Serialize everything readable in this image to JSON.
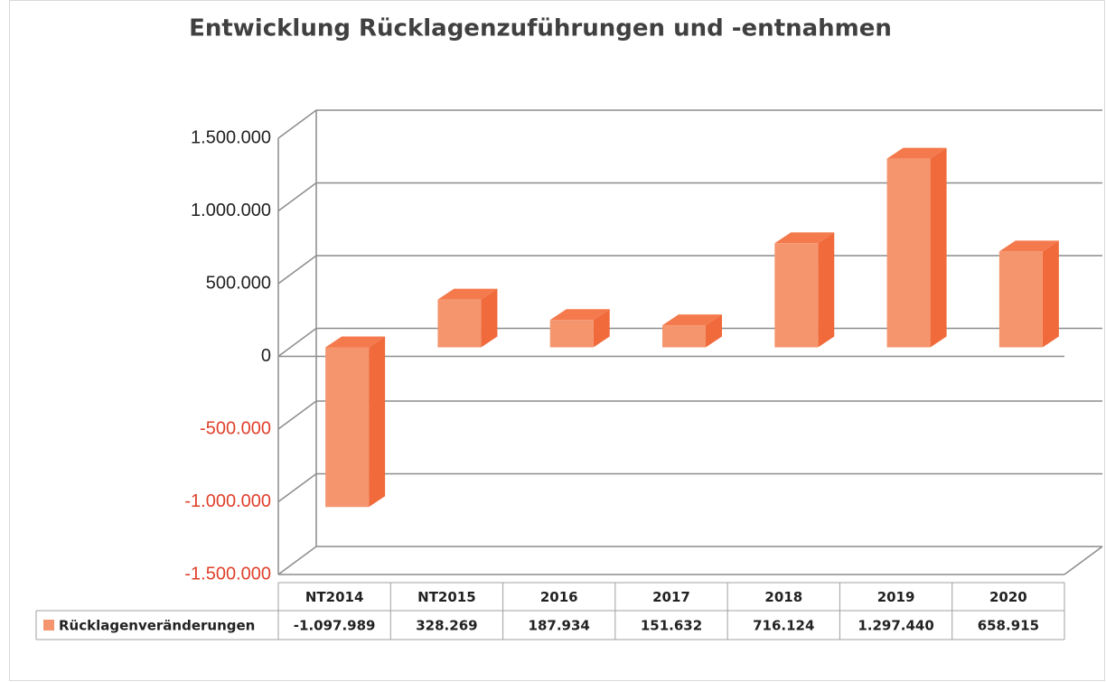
{
  "chart_data": {
    "type": "bar",
    "title": "Entwicklung Rücklagenzuführungen und -entnahmen",
    "categories": [
      "NT2014",
      "NT2015",
      "2016",
      "2017",
      "2018",
      "2019",
      "2020"
    ],
    "series": [
      {
        "name": "Rücklagenveränderungen",
        "color": "#f4956e",
        "values": [
          -1097989,
          328269,
          187934,
          151632,
          716124,
          1297440,
          658915
        ],
        "value_labels": [
          "-1.097.989",
          "328.269",
          "187.934",
          "151.632",
          "716.124",
          "1.297.440",
          "658.915"
        ]
      }
    ],
    "ylim": [
      -1500000,
      1500000
    ],
    "yticks": [
      {
        "value": -1500000,
        "label": "-1.500.000"
      },
      {
        "value": -1000000,
        "label": "-1.000.000"
      },
      {
        "value": -500000,
        "label": "-500.000"
      },
      0,
      {
        "value": 500000,
        "label": "500.000"
      },
      {
        "value": 1000000,
        "label": "1.000.000"
      },
      {
        "value": 1500000,
        "label": "1.500.000"
      }
    ],
    "grid": true,
    "negative_tick_color": "#e0402a",
    "data_table": true
  }
}
